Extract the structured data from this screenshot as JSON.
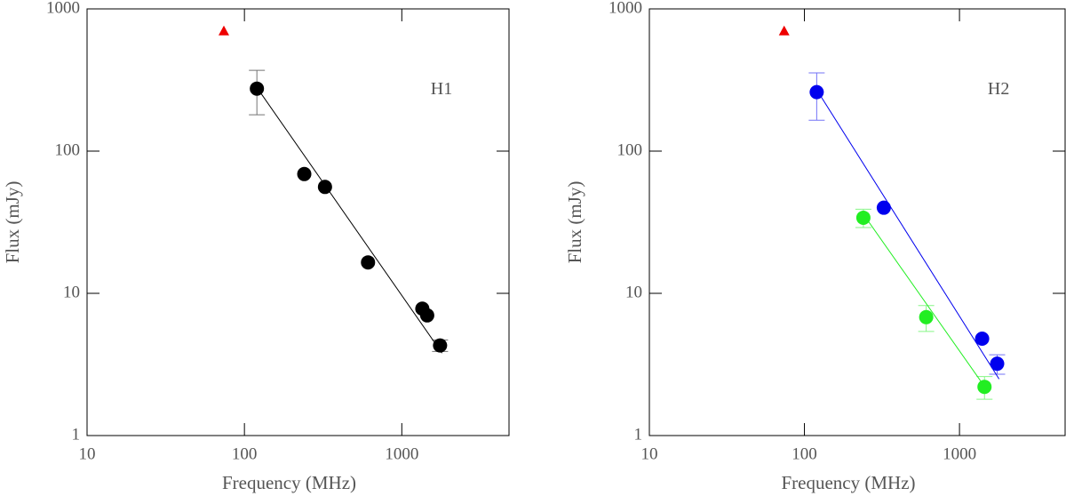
{
  "chart_data": [
    {
      "type": "scatter",
      "annotation": "H1",
      "xlabel": "Frequency (MHz)",
      "ylabel": "Flux (mJy)",
      "log_x": true,
      "log_y": true,
      "xlim": [
        10,
        4800
      ],
      "ylim": [
        1,
        1000
      ],
      "xticks": [
        10,
        100,
        1000
      ],
      "yticks": [
        1,
        10,
        100,
        1000
      ],
      "series": [
        {
          "marker": "circle",
          "color": "#000000",
          "x": [
            120,
            240,
            325,
            610,
            1350,
            1450,
            1750
          ],
          "values": [
            275,
            69,
            56,
            16.5,
            7.8,
            7,
            4.3
          ],
          "errors": [
            95,
            null,
            null,
            null,
            null,
            null,
            0.4
          ]
        },
        {
          "marker": "line",
          "color": "#000000",
          "x": [
            120,
            1800
          ],
          "values": [
            280,
            3.8
          ]
        },
        {
          "marker": "triangle",
          "color": "#ee0000",
          "x": [
            74
          ],
          "values": [
            700
          ]
        }
      ]
    },
    {
      "type": "scatter",
      "annotation": "H2",
      "xlabel": "Frequency (MHz)",
      "ylabel": "Flux (mJy)",
      "log_x": true,
      "log_y": true,
      "xlim": [
        10,
        4800
      ],
      "ylim": [
        1,
        1000
      ],
      "xticks": [
        10,
        100,
        1000
      ],
      "yticks": [
        1,
        10,
        100,
        1000
      ],
      "series": [
        {
          "marker": "circle",
          "color": "#0000ee",
          "x": [
            120,
            325,
            1400,
            1750
          ],
          "values": [
            260,
            40,
            4.8,
            3.2
          ],
          "errors": [
            95,
            null,
            null,
            0.5
          ]
        },
        {
          "marker": "line",
          "color": "#0000ee",
          "x": [
            120,
            1800
          ],
          "values": [
            270,
            2.5
          ]
        },
        {
          "marker": "circle",
          "color": "#22ee22",
          "x": [
            240,
            610,
            1450
          ],
          "values": [
            34,
            6.8,
            2.2
          ],
          "errors": [
            5,
            1.4,
            0.4
          ]
        },
        {
          "marker": "line",
          "color": "#22ee22",
          "x": [
            240,
            1500
          ],
          "values": [
            36,
            2.1
          ]
        },
        {
          "marker": "triangle",
          "color": "#ee0000",
          "x": [
            74
          ],
          "values": [
            700
          ]
        }
      ]
    }
  ]
}
